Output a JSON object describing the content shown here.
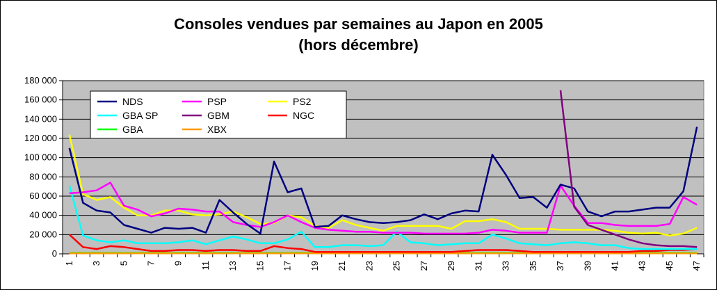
{
  "chart_data": {
    "type": "line",
    "title": "Consoles vendues par semaines au Japon en 2005",
    "subtitle": "(hors décembre)",
    "x": [
      1,
      2,
      3,
      4,
      5,
      6,
      7,
      8,
      9,
      10,
      11,
      12,
      13,
      14,
      15,
      16,
      17,
      18,
      19,
      20,
      21,
      22,
      23,
      24,
      25,
      26,
      27,
      28,
      29,
      30,
      31,
      32,
      33,
      34,
      35,
      36,
      37,
      38,
      39,
      40,
      41,
      42,
      43,
      44,
      45,
      46,
      47
    ],
    "x_tick_labels": [
      "1",
      "3",
      "5",
      "7",
      "9",
      "11",
      "13",
      "15",
      "17",
      "19",
      "21",
      "23",
      "25",
      "27",
      "29",
      "31",
      "33",
      "35",
      "37",
      "39",
      "41",
      "43",
      "45",
      "47"
    ],
    "ylim": [
      0,
      180000
    ],
    "y_tick_labels": [
      "0",
      "20 000",
      "40 000",
      "60 000",
      "80 000",
      "100 000",
      "120 000",
      "140 000",
      "160 000",
      "180 000"
    ],
    "grid": "horizontal",
    "plot_background": "#c0c0c0",
    "legend_placement": "top-left",
    "series": [
      {
        "name": "NDS",
        "color": "#000080",
        "values": [
          110000,
          53000,
          45000,
          43000,
          30000,
          26000,
          22000,
          27000,
          26000,
          27000,
          22000,
          56000,
          43000,
          31000,
          21000,
          96000,
          64000,
          68000,
          28000,
          29000,
          40000,
          36000,
          33000,
          32000,
          33000,
          35000,
          41000,
          36000,
          42000,
          45000,
          44000,
          103000,
          82000,
          58000,
          59000,
          48000,
          72000,
          68000,
          44000,
          39000,
          44000,
          44000,
          46000,
          48000,
          48000,
          65000,
          132000
        ]
      },
      {
        "name": "PSP",
        "color": "#ff00ff",
        "values": [
          63000,
          64000,
          66000,
          74000,
          50000,
          46000,
          39000,
          42000,
          47000,
          46000,
          44000,
          44000,
          33000,
          30000,
          28000,
          33000,
          40000,
          33000,
          27000,
          25000,
          24000,
          23000,
          23000,
          22000,
          22000,
          22000,
          21000,
          21000,
          21000,
          21000,
          22000,
          25000,
          24000,
          22000,
          22000,
          22000,
          71000,
          50000,
          32000,
          32000,
          30000,
          29000,
          29000,
          29000,
          31000,
          59000,
          51000
        ]
      },
      {
        "name": "PS2",
        "color": "#ffff00",
        "values": [
          124000,
          62000,
          56000,
          59000,
          48000,
          40000,
          40000,
          45000,
          45000,
          41000,
          40000,
          41000,
          44000,
          38000,
          31000,
          32000,
          40000,
          38000,
          29000,
          27000,
          35000,
          30000,
          27000,
          24000,
          29000,
          29000,
          29000,
          29000,
          26000,
          34000,
          34000,
          36000,
          33000,
          26000,
          26000,
          26000,
          25000,
          25000,
          25000,
          25000,
          24000,
          22000,
          21000,
          22000,
          19000,
          21000,
          27000
        ]
      },
      {
        "name": "GBA SP",
        "color": "#00ffff",
        "values": [
          71000,
          19000,
          14000,
          12000,
          14000,
          11000,
          11000,
          11000,
          12000,
          14000,
          10000,
          14000,
          18000,
          15000,
          11000,
          11000,
          15000,
          23000,
          7000,
          7000,
          9000,
          9000,
          8000,
          9000,
          23000,
          12000,
          11000,
          9000,
          10000,
          11000,
          11000,
          20000,
          16000,
          11000,
          10000,
          9000,
          11000,
          12000,
          11000,
          9000,
          9000,
          6000,
          5000,
          5000,
          5000,
          5000,
          5000
        ]
      },
      {
        "name": "GBM",
        "color": "#800080",
        "values": [
          null,
          null,
          null,
          null,
          null,
          null,
          null,
          null,
          null,
          null,
          null,
          null,
          null,
          null,
          null,
          null,
          null,
          null,
          null,
          null,
          null,
          null,
          null,
          null,
          null,
          null,
          null,
          null,
          null,
          null,
          null,
          null,
          null,
          null,
          null,
          null,
          170000,
          49000,
          30000,
          25000,
          20000,
          15000,
          11000,
          9000,
          8000,
          8000,
          7000
        ]
      },
      {
        "name": "NGC",
        "color": "#ff0000",
        "values": [
          20000,
          7000,
          5000,
          8000,
          7000,
          5000,
          3000,
          3000,
          4000,
          4000,
          3000,
          4000,
          4000,
          3000,
          3000,
          8000,
          6000,
          5000,
          2000,
          2000,
          2000,
          2000,
          2000,
          2000,
          2000,
          2000,
          2000,
          2000,
          2000,
          3000,
          4000,
          4000,
          4000,
          3000,
          2000,
          2000,
          2000,
          2000,
          2000,
          2000,
          2000,
          2000,
          3000,
          3000,
          4000,
          4000,
          5000
        ]
      },
      {
        "name": "GBA",
        "color": "#00ff00",
        "values": [
          1000,
          1000,
          1000,
          1000,
          1000,
          1000,
          1000,
          1000,
          1000,
          1000,
          1000,
          1000,
          1000,
          1000,
          1000,
          1000,
          1000,
          1000,
          1000,
          1000,
          1000,
          1000,
          1000,
          1000,
          1000,
          1000,
          1000,
          1000,
          1000,
          1000,
          1000,
          1000,
          1000,
          1000,
          1000,
          1000,
          1000,
          1000,
          1000,
          1000,
          1000,
          1000,
          1000,
          1000,
          1000,
          1000,
          1000
        ]
      },
      {
        "name": "XBX",
        "color": "#ff9900",
        "values": [
          500,
          500,
          500,
          500,
          500,
          500,
          500,
          500,
          500,
          500,
          500,
          500,
          500,
          500,
          500,
          500,
          500,
          500,
          500,
          500,
          500,
          500,
          500,
          500,
          500,
          500,
          500,
          500,
          500,
          500,
          500,
          500,
          500,
          500,
          500,
          500,
          500,
          500,
          500,
          500,
          500,
          500,
          500,
          500,
          500,
          500,
          500
        ]
      }
    ]
  }
}
